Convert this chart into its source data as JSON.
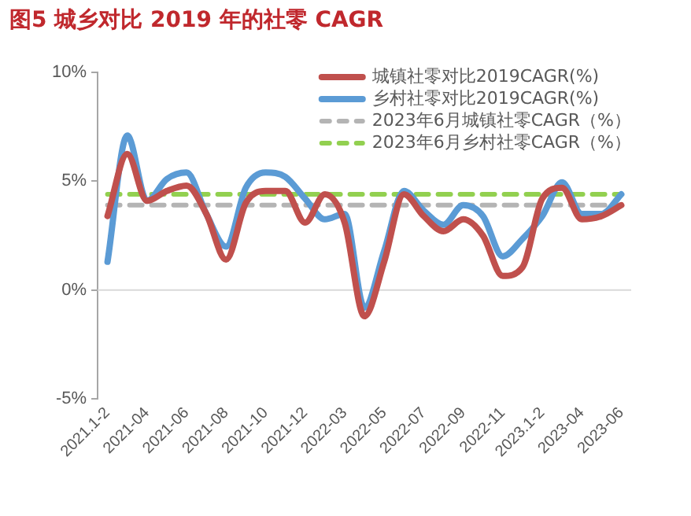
{
  "chart_data": {
    "type": "line",
    "title": "图5  城乡对比 2019 年的社零 CAGR",
    "categories": [
      "2021.1-2",
      null,
      "2021-04",
      null,
      "2021-06",
      null,
      "2021-08",
      null,
      "2021-10",
      null,
      "2021-12",
      null,
      "2022-03",
      null,
      "2022-05",
      null,
      "2022-07",
      null,
      "2022-09",
      null,
      "2022-11",
      null,
      "2023.1-2",
      null,
      "2023-04",
      null,
      "2023-06"
    ],
    "series": [
      {
        "name": "城镇社零对比2019CAGR(%)",
        "color": "#c0504d",
        "values": [
          3.4,
          6.25,
          4.1,
          4.55,
          4.8,
          3.5,
          1.4,
          4.0,
          4.55,
          4.55,
          3.1,
          4.4,
          3.1,
          -1.2,
          1.3,
          4.4,
          3.4,
          2.7,
          3.25,
          2.5,
          0.65,
          1.05,
          4.2,
          4.7,
          3.25,
          3.4,
          3.9
        ]
      },
      {
        "name": "乡村社零对比2019CAGR(%)",
        "color": "#5b9bd5",
        "values": [
          1.3,
          7.1,
          4.1,
          5.1,
          5.4,
          3.5,
          2.0,
          4.7,
          5.4,
          5.2,
          4.2,
          3.25,
          3.5,
          -0.8,
          1.8,
          4.55,
          3.65,
          3.0,
          3.9,
          3.4,
          1.55,
          2.35,
          3.4,
          4.95,
          3.5,
          3.5,
          4.4
        ]
      },
      {
        "name": "2023年6月城镇社零CAGR（%）",
        "color": "#b4b4b4",
        "line_style": "dashed",
        "values": [
          3.9,
          3.9,
          3.9,
          3.9,
          3.9,
          3.9,
          3.9,
          3.9,
          3.9,
          3.9,
          3.9,
          3.9,
          3.9,
          3.9,
          3.9,
          3.9,
          3.9,
          3.9,
          3.9,
          3.9,
          3.9,
          3.9,
          3.9,
          3.9,
          3.9,
          3.9,
          3.9
        ]
      },
      {
        "name": "2023年6月乡村社零CAGR（%）",
        "color": "#92d050",
        "line_style": "dashed",
        "values": [
          4.4,
          4.4,
          4.4,
          4.4,
          4.4,
          4.4,
          4.4,
          4.4,
          4.4,
          4.4,
          4.4,
          4.4,
          4.4,
          4.4,
          4.4,
          4.4,
          4.4,
          4.4,
          4.4,
          4.4,
          4.4,
          4.4,
          4.4,
          4.4,
          4.4,
          4.4,
          4.4
        ]
      }
    ],
    "ylim": [
      -5,
      10
    ],
    "yticks": [
      {
        "value": -5,
        "label": "-5%"
      },
      {
        "value": 0,
        "label": "0%"
      },
      {
        "value": 5,
        "label": "5%"
      },
      {
        "value": 10,
        "label": "10%"
      }
    ],
    "ref_lines": [
      {
        "axis": "y",
        "value": 0,
        "color": "#d9d9d9"
      }
    ],
    "grid": false,
    "legend": "top right",
    "marker": "none",
    "line_style": "solid"
  }
}
